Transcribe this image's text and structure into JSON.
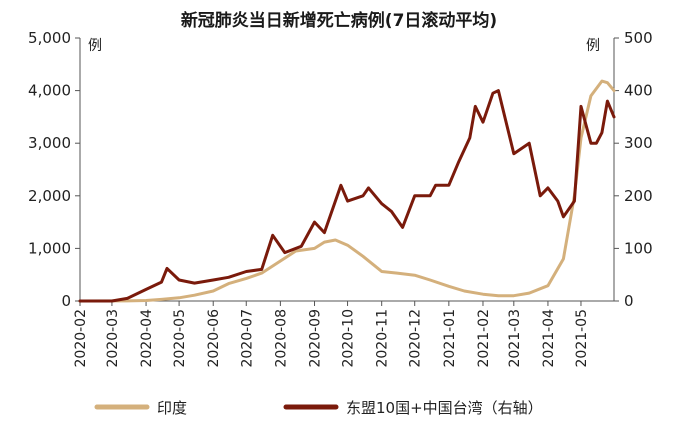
{
  "chart_data": {
    "type": "line",
    "title": "新冠肺炎当日新增死亡病例(7日滚动平均)",
    "left_unit": "例",
    "right_unit": "例",
    "y_left_range": [
      0,
      5000
    ],
    "y_right_range": [
      0,
      500
    ],
    "y_left_ticks": [
      "0",
      "1,000",
      "2,000",
      "3,000",
      "4,000",
      "5,000"
    ],
    "y_right_ticks": [
      "0",
      "100",
      "200",
      "300",
      "400",
      "500"
    ],
    "x_ticks": [
      "2020-02",
      "2020-03",
      "2020-04",
      "2020-05",
      "2020-06",
      "2020-07",
      "2020-08",
      "2020-09",
      "2020-10",
      "2020-11",
      "2020-12",
      "2021-01",
      "2021-02",
      "2021-03",
      "2021-04",
      "2021-05"
    ],
    "x_range": [
      "2020-02-01",
      "2021-05-31"
    ],
    "grid": false,
    "legend_position": "bottom",
    "series": [
      {
        "name": "印度",
        "axis": "left",
        "color": "#d4b07c",
        "points": [
          [
            "2020-02-01",
            0
          ],
          [
            "2020-03-15",
            2
          ],
          [
            "2020-04-01",
            10
          ],
          [
            "2020-04-15",
            30
          ],
          [
            "2020-05-01",
            60
          ],
          [
            "2020-05-15",
            110
          ],
          [
            "2020-06-01",
            190
          ],
          [
            "2020-06-15",
            330
          ],
          [
            "2020-07-01",
            430
          ],
          [
            "2020-07-15",
            530
          ],
          [
            "2020-08-01",
            760
          ],
          [
            "2020-08-15",
            950
          ],
          [
            "2020-09-01",
            1000
          ],
          [
            "2020-09-10",
            1120
          ],
          [
            "2020-09-20",
            1160
          ],
          [
            "2020-10-01",
            1060
          ],
          [
            "2020-10-15",
            850
          ],
          [
            "2020-11-01",
            560
          ],
          [
            "2020-11-15",
            530
          ],
          [
            "2020-12-01",
            490
          ],
          [
            "2020-12-15",
            400
          ],
          [
            "2021-01-01",
            280
          ],
          [
            "2021-01-15",
            190
          ],
          [
            "2021-02-01",
            130
          ],
          [
            "2021-02-15",
            100
          ],
          [
            "2021-03-01",
            100
          ],
          [
            "2021-03-15",
            150
          ],
          [
            "2021-04-01",
            290
          ],
          [
            "2021-04-15",
            800
          ],
          [
            "2021-04-25",
            2000
          ],
          [
            "2021-05-01",
            3100
          ],
          [
            "2021-05-10",
            3900
          ],
          [
            "2021-05-20",
            4180
          ],
          [
            "2021-05-25",
            4150
          ],
          [
            "2021-05-31",
            4000
          ]
        ]
      },
      {
        "name": "东盟10国+中国台湾（右轴）",
        "axis": "right",
        "color": "#7a1a0b",
        "points": [
          [
            "2020-02-01",
            0
          ],
          [
            "2020-03-01",
            0
          ],
          [
            "2020-03-15",
            5
          ],
          [
            "2020-04-01",
            22
          ],
          [
            "2020-04-15",
            36
          ],
          [
            "2020-04-20",
            62
          ],
          [
            "2020-05-01",
            40
          ],
          [
            "2020-05-15",
            34
          ],
          [
            "2020-06-01",
            40
          ],
          [
            "2020-06-15",
            45
          ],
          [
            "2020-07-01",
            56
          ],
          [
            "2020-07-15",
            60
          ],
          [
            "2020-07-25",
            125
          ],
          [
            "2020-08-05",
            92
          ],
          [
            "2020-08-20",
            104
          ],
          [
            "2020-09-01",
            150
          ],
          [
            "2020-09-10",
            130
          ],
          [
            "2020-09-25",
            220
          ],
          [
            "2020-10-01",
            190
          ],
          [
            "2020-10-15",
            200
          ],
          [
            "2020-10-20",
            215
          ],
          [
            "2020-11-01",
            185
          ],
          [
            "2020-11-10",
            170
          ],
          [
            "2020-11-20",
            140
          ],
          [
            "2020-12-01",
            200
          ],
          [
            "2020-12-15",
            200
          ],
          [
            "2020-12-20",
            220
          ],
          [
            "2021-01-01",
            220
          ],
          [
            "2021-01-10",
            265
          ],
          [
            "2021-01-20",
            310
          ],
          [
            "2021-01-25",
            370
          ],
          [
            "2021-02-01",
            340
          ],
          [
            "2021-02-10",
            395
          ],
          [
            "2021-02-15",
            400
          ],
          [
            "2021-03-01",
            280
          ],
          [
            "2021-03-15",
            300
          ],
          [
            "2021-03-25",
            200
          ],
          [
            "2021-04-01",
            215
          ],
          [
            "2021-04-10",
            190
          ],
          [
            "2021-04-15",
            160
          ],
          [
            "2021-04-25",
            190
          ],
          [
            "2021-05-01",
            370
          ],
          [
            "2021-05-10",
            300
          ],
          [
            "2021-05-15",
            300
          ],
          [
            "2021-05-20",
            320
          ],
          [
            "2021-05-25",
            380
          ],
          [
            "2021-05-31",
            350
          ]
        ]
      }
    ]
  }
}
